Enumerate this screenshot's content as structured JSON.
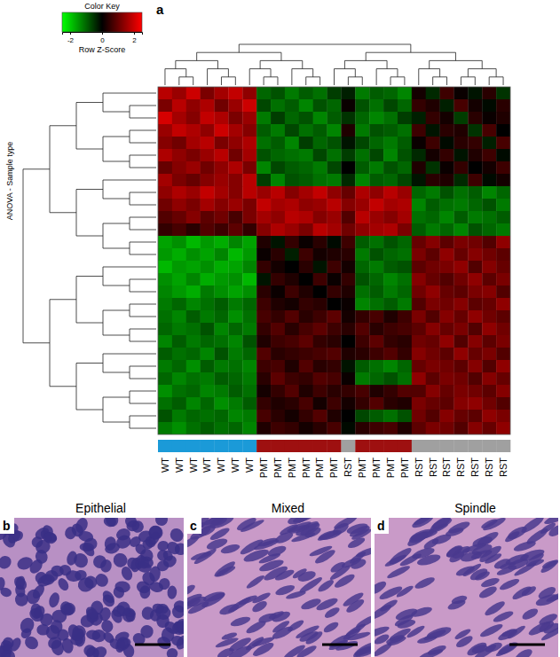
{
  "chart_data": {
    "type": "heatmap",
    "panel_label": "a",
    "y_label": "ANOVA - Sample type",
    "color_key": {
      "title": "Color Key",
      "label": "Row Z-Score",
      "range": [
        -2.5,
        2.5
      ],
      "ticks": [
        -2,
        0,
        2
      ]
    },
    "x": [
      "WT",
      "WT",
      "WT",
      "WT",
      "WT",
      "WT",
      "WT",
      "PMT",
      "PMT",
      "PMT",
      "PMT",
      "PMT",
      "PMT",
      "RST",
      "PMT",
      "PMT",
      "PMT",
      "PMT",
      "RST",
      "RST",
      "RST",
      "RST",
      "RST",
      "RST",
      "RST"
    ],
    "colors": [
      "#1b9ad8",
      "#1b9ad8",
      "#1b9ad8",
      "#1b9ad8",
      "#1b9ad8",
      "#1b9ad8",
      "#1b9ad8",
      "#9e1010",
      "#9e1010",
      "#9e1010",
      "#9e1010",
      "#9e1010",
      "#9e1010",
      "#a0a0a0",
      "#9e1010",
      "#9e1010",
      "#9e1010",
      "#9e1010",
      "#a0a0a0",
      "#a0a0a0",
      "#a0a0a0",
      "#a0a0a0",
      "#a0a0a0",
      "#a0a0a0",
      "#a0a0a0"
    ],
    "cells": [
      [
        1.8,
        1.5,
        2.0,
        1.2,
        1.6,
        1.9,
        1.4,
        -1.0,
        -0.8,
        -1.2,
        -0.9,
        -1.1,
        -0.6,
        -0.3,
        -1.2,
        -0.9,
        -1.0,
        -1.3,
        0.2,
        -0.4,
        0.6,
        0.1,
        -0.2,
        0.4,
        -0.5
      ],
      [
        1.2,
        1.8,
        1.4,
        1.7,
        1.1,
        1.5,
        2.0,
        -0.7,
        -1.1,
        -0.9,
        -1.3,
        -0.8,
        -1.0,
        0.1,
        -0.8,
        -1.1,
        -0.7,
        -1.0,
        0.5,
        0.3,
        -0.3,
        0.7,
        0.2,
        -0.1,
        0.4
      ],
      [
        2.1,
        1.6,
        1.3,
        1.9,
        1.7,
        1.2,
        1.5,
        -1.2,
        -0.6,
        -1.0,
        -0.8,
        -1.3,
        -0.9,
        -0.5,
        -1.0,
        -1.3,
        -1.1,
        -0.6,
        -0.3,
        0.5,
        0.2,
        -0.6,
        0.4,
        0.1,
        0.3
      ],
      [
        1.5,
        1.9,
        1.7,
        1.4,
        2.0,
        1.6,
        1.3,
        -0.9,
        -1.2,
        -0.7,
        -1.1,
        -0.9,
        -1.3,
        0.3,
        -1.2,
        -0.8,
        -0.9,
        -1.1,
        0.6,
        -0.2,
        0.4,
        0.3,
        -0.5,
        0.7,
        0.0
      ],
      [
        1.3,
        1.1,
        1.6,
        1.8,
        1.2,
        1.4,
        1.7,
        -1.1,
        -0.9,
        -1.3,
        -0.6,
        -1.0,
        -0.8,
        -0.2,
        -0.7,
        -1.0,
        -1.2,
        -0.9,
        0.1,
        0.6,
        -0.1,
        0.4,
        0.5,
        -0.3,
        0.7
      ],
      [
        1.7,
        1.4,
        1.2,
        1.5,
        1.8,
        1.1,
        1.6,
        -0.8,
        -1.0,
        -1.1,
        -1.2,
        -0.7,
        -1.1,
        -0.6,
        -1.1,
        -0.7,
        -1.3,
        -0.8,
        -0.4,
        0.2,
        0.5,
        -0.2,
        0.3,
        0.6,
        -0.1
      ],
      [
        1.0,
        1.3,
        1.5,
        1.1,
        1.4,
        1.7,
        1.2,
        -1.3,
        -0.7,
        -0.9,
        -1.0,
        -1.2,
        -0.7,
        0.0,
        -0.9,
        -1.2,
        -0.8,
        -1.0,
        0.3,
        -0.5,
        0.1,
        0.5,
        0.0,
        0.2,
        0.6
      ],
      [
        1.6,
        1.2,
        1.0,
        1.3,
        1.5,
        1.3,
        1.8,
        -0.6,
        -1.3,
        -0.8,
        -0.9,
        -1.1,
        -1.2,
        -0.4,
        -1.3,
        -0.9,
        -1.0,
        -0.7,
        -0.2,
        0.4,
        0.3,
        -0.4,
        0.6,
        -0.1,
        0.2
      ],
      [
        1.4,
        1.7,
        1.5,
        1.9,
        1.6,
        1.3,
        1.8,
        1.5,
        1.8,
        1.3,
        1.6,
        1.9,
        1.4,
        1.0,
        1.7,
        1.4,
        1.8,
        1.5,
        -1.0,
        -1.2,
        -0.8,
        -1.1,
        -0.9,
        -1.3,
        -1.0
      ],
      [
        1.1,
        1.4,
        1.2,
        1.6,
        1.3,
        1.5,
        1.2,
        1.9,
        1.6,
        1.7,
        1.4,
        1.5,
        1.8,
        1.3,
        1.5,
        1.9,
        1.6,
        1.7,
        -1.3,
        -0.9,
        -1.1,
        -1.2,
        -1.0,
        -0.8,
        -1.2
      ],
      [
        0.8,
        1.0,
        1.3,
        0.9,
        1.1,
        0.7,
        1.2,
        1.6,
        1.4,
        1.8,
        1.7,
        1.3,
        1.5,
        0.8,
        1.8,
        1.5,
        1.3,
        1.6,
        -1.1,
        -1.0,
        -1.3,
        -0.9,
        -1.2,
        -1.1,
        -0.9
      ],
      [
        0.5,
        0.7,
        0.4,
        0.8,
        0.6,
        0.9,
        0.5,
        1.3,
        1.7,
        1.5,
        1.2,
        1.8,
        1.6,
        1.1,
        1.4,
        1.6,
        1.7,
        1.2,
        -0.9,
        -1.2,
        -1.0,
        -1.3,
        -0.8,
        -1.0,
        -1.2
      ],
      [
        -1.6,
        -1.4,
        -1.8,
        -1.5,
        -1.7,
        -1.3,
        -1.6,
        0.3,
        -0.2,
        0.5,
        0.1,
        0.4,
        -0.1,
        0.6,
        -0.9,
        -1.1,
        -0.8,
        -1.0,
        1.0,
        1.3,
        0.9,
        1.2,
        1.1,
        0.8,
        1.4
      ],
      [
        -1.5,
        -1.7,
        -1.4,
        -1.6,
        -1.3,
        -1.8,
        -1.5,
        0.1,
        0.4,
        -0.3,
        0.6,
        0.2,
        0.3,
        0.4,
        -1.2,
        -0.8,
        -1.0,
        -1.1,
        1.2,
        0.9,
        1.4,
        1.0,
        1.3,
        1.1,
        0.9
      ],
      [
        -1.8,
        -1.5,
        -1.6,
        -1.4,
        -1.7,
        -1.6,
        -1.3,
        0.5,
        0.2,
        0.0,
        0.4,
        -0.2,
        0.6,
        0.2,
        -1.0,
        -1.2,
        -0.9,
        -0.8,
        0.9,
        1.1,
        1.2,
        1.4,
        0.8,
        1.3,
        1.0
      ],
      [
        -1.4,
        -1.6,
        -1.3,
        -1.7,
        -1.5,
        -1.4,
        -1.8,
        -0.2,
        0.5,
        0.3,
        0.0,
        0.6,
        0.1,
        0.5,
        -0.8,
        -1.0,
        -1.3,
        -1.1,
        1.3,
        1.0,
        0.8,
        1.1,
        1.4,
        0.9,
        1.2
      ],
      [
        -1.3,
        -1.5,
        -1.7,
        -1.2,
        -1.4,
        -1.6,
        -1.4,
        0.4,
        0.1,
        0.6,
        0.3,
        0.0,
        0.5,
        0.3,
        -1.1,
        -0.9,
        -1.2,
        -1.0,
        1.1,
        1.4,
        1.0,
        0.9,
        1.2,
        1.3,
        0.8
      ],
      [
        -1.2,
        -1.0,
        -1.3,
        -1.1,
        -0.9,
        -1.2,
        -1.0,
        0.6,
        0.3,
        0.2,
        0.5,
        0.4,
        0.0,
        0.1,
        -1.3,
        -1.1,
        -0.9,
        -1.2,
        0.8,
        1.2,
        1.1,
        1.3,
        0.9,
        1.0,
        1.4
      ],
      [
        -1.1,
        -1.3,
        -0.9,
        -1.2,
        -1.0,
        -1.4,
        -1.1,
        0.7,
        0.5,
        0.8,
        0.4,
        0.6,
        0.9,
        0.2,
        0.5,
        0.7,
        0.3,
        0.6,
        1.2,
        0.8,
        1.3,
        1.0,
        1.4,
        1.1,
        0.9
      ],
      [
        -1.0,
        -1.2,
        -1.1,
        -0.8,
        -1.3,
        -1.0,
        -1.2,
        0.5,
        0.8,
        0.4,
        0.7,
        0.9,
        0.6,
        0.4,
        0.8,
        0.4,
        0.6,
        0.7,
        0.9,
        1.3,
        1.0,
        1.2,
        0.8,
        1.4,
        1.1
      ],
      [
        -1.3,
        -0.9,
        -1.2,
        -1.0,
        -1.1,
        -1.3,
        -0.8,
        0.3,
        0.6,
        0.7,
        0.9,
        0.5,
        0.4,
        0.0,
        0.6,
        0.9,
        0.5,
        0.4,
        1.1,
        1.0,
        1.4,
        0.8,
        1.3,
        0.9,
        1.2
      ],
      [
        -0.9,
        -1.1,
        -1.0,
        -1.3,
        -0.8,
        -1.2,
        -1.0,
        0.8,
        0.4,
        0.5,
        0.6,
        0.7,
        0.8,
        0.3,
        0.4,
        0.6,
        0.8,
        0.5,
        1.3,
        1.1,
        0.9,
        1.4,
        1.0,
        1.2,
        0.8
      ],
      [
        -1.2,
        -1.0,
        -1.4,
        -0.9,
        -1.2,
        -1.1,
        -1.3,
        0.6,
        0.7,
        0.3,
        0.8,
        0.4,
        0.5,
        -0.2,
        -0.9,
        -1.1,
        -1.3,
        -1.0,
        1.0,
        1.2,
        1.1,
        0.9,
        1.3,
        0.8,
        1.4
      ],
      [
        -1.0,
        -1.3,
        -1.1,
        -1.2,
        -0.9,
        -1.0,
        -1.2,
        0.4,
        0.9,
        0.6,
        0.5,
        0.8,
        0.7,
        0.1,
        -1.2,
        -1.0,
        -0.8,
        -1.1,
        1.4,
        0.9,
        1.2,
        1.1,
        0.8,
        1.3,
        1.0
      ],
      [
        -1.4,
        -1.1,
        -1.0,
        -1.3,
        -1.2,
        -0.9,
        -1.1,
        0.2,
        0.5,
        0.8,
        0.3,
        0.6,
        0.4,
        0.5,
        0.7,
        0.3,
        0.5,
        0.8,
        0.8,
        1.3,
        1.0,
        1.2,
        1.1,
        0.9,
        1.3
      ],
      [
        -1.1,
        -0.9,
        -1.3,
        -1.0,
        -1.4,
        -1.2,
        -0.9,
        0.5,
        0.3,
        0.4,
        0.7,
        0.2,
        0.6,
        0.2,
        0.5,
        0.8,
        0.4,
        0.3,
        1.2,
        1.0,
        0.9,
        1.3,
        1.4,
        1.1,
        0.8
      ],
      [
        -0.8,
        -1.2,
        -1.0,
        -1.1,
        -1.0,
        -1.3,
        -1.2,
        0.7,
        0.4,
        0.2,
        0.5,
        0.8,
        0.3,
        0.0,
        -0.7,
        -0.9,
        -1.1,
        -0.8,
        1.1,
        0.8,
        1.3,
        1.0,
        0.9,
        1.4,
        1.2
      ],
      [
        -1.2,
        -1.4,
        -1.1,
        -0.9,
        -1.1,
        -1.0,
        -1.3,
        0.3,
        0.6,
        0.5,
        0.2,
        0.4,
        0.7,
        -0.1,
        0.4,
        0.6,
        0.7,
        0.3,
        0.9,
        1.2,
        1.1,
        0.8,
        1.3,
        1.0,
        1.4
      ]
    ]
  },
  "panels": [
    {
      "label": "b",
      "title": "Epithelial"
    },
    {
      "label": "c",
      "title": "Mixed"
    },
    {
      "label": "d",
      "title": "Spindle"
    }
  ]
}
